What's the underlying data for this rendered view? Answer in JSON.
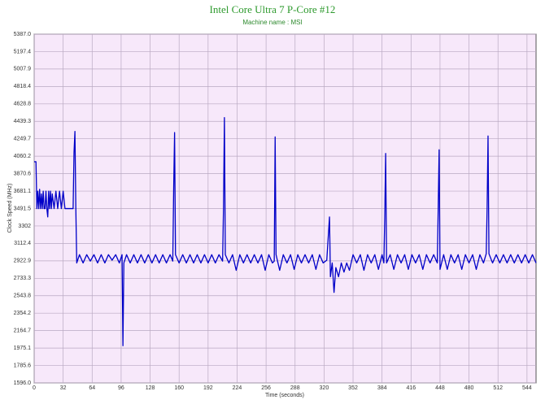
{
  "chart_data": {
    "type": "line",
    "title": "Intel Core Ultra 7 P-Core #12",
    "subtitle": "Machine name : MSI",
    "y_label": "Clock Speed (MHz)",
    "x_label": "Time (seconds)",
    "xlim": [
      0,
      554
    ],
    "ylim": [
      1596,
      5387
    ],
    "xticks": [
      0,
      32,
      64,
      96,
      128,
      160,
      192,
      224,
      256,
      288,
      320,
      352,
      384,
      416,
      448,
      480,
      512,
      544
    ],
    "yticks": [
      {
        "value": 1596,
        "label": "1596.0"
      },
      1785.6,
      1975.1,
      2164.7,
      2354.2,
      2543.8,
      2733.3,
      2922.9,
      3112.4,
      3302,
      3491.5,
      3681.1,
      3870.6,
      4060.2,
      4249.7,
      4439.3,
      4628.8,
      4818.4,
      5007.9,
      5197.4,
      {
        "value": 5387,
        "label": "5387.0"
      }
    ],
    "grid": true,
    "x": [
      0,
      2,
      3,
      4,
      5,
      6,
      7,
      8,
      9,
      10,
      11,
      12,
      13,
      14,
      15,
      16,
      17,
      18,
      19,
      20,
      22,
      24,
      26,
      28,
      30,
      32,
      34,
      36,
      38,
      40,
      42,
      43,
      44,
      45,
      46,
      47,
      50,
      54,
      58,
      62,
      66,
      70,
      74,
      78,
      82,
      86,
      90,
      94,
      97,
      98,
      99,
      102,
      106,
      110,
      114,
      118,
      122,
      126,
      130,
      134,
      138,
      142,
      146,
      150,
      153,
      154,
      155,
      156,
      160,
      164,
      168,
      172,
      176,
      180,
      184,
      188,
      192,
      196,
      200,
      204,
      208,
      209,
      210,
      211,
      215,
      219,
      223,
      227,
      231,
      235,
      239,
      243,
      247,
      251,
      255,
      259,
      263,
      265,
      266,
      267,
      271,
      275,
      279,
      283,
      287,
      291,
      295,
      299,
      303,
      307,
      311,
      315,
      319,
      323,
      326,
      327,
      329,
      331,
      333,
      336,
      339,
      342,
      345,
      348,
      352,
      356,
      360,
      364,
      368,
      372,
      376,
      380,
      384,
      386,
      387,
      388,
      389,
      393,
      397,
      401,
      405,
      409,
      413,
      417,
      421,
      425,
      429,
      433,
      437,
      441,
      445,
      446,
      447,
      448,
      452,
      456,
      460,
      464,
      468,
      472,
      476,
      480,
      484,
      488,
      492,
      496,
      499,
      500,
      501,
      502,
      506,
      510,
      514,
      518,
      522,
      526,
      530,
      534,
      538,
      542,
      546,
      550,
      554
    ],
    "series": [
      {
        "name": "P-Core #12",
        "color": "#0000c8",
        "values": [
          4000,
          4000,
          3491,
          3680,
          3491,
          3700,
          3491,
          3650,
          3491,
          3680,
          3491,
          3491,
          3680,
          3491,
          3400,
          3680,
          3491,
          3680,
          3491,
          3650,
          3491,
          3680,
          3491,
          3680,
          3491,
          3680,
          3491,
          3491,
          3491,
          3491,
          3491,
          3491,
          4100,
          4330,
          3491,
          2900,
          2990,
          2900,
          2990,
          2920,
          2990,
          2900,
          2990,
          2900,
          2990,
          2930,
          2990,
          2900,
          2990,
          2000,
          2900,
          2990,
          2900,
          2990,
          2900,
          2990,
          2900,
          2990,
          2900,
          2990,
          2900,
          2990,
          2900,
          2990,
          2920,
          3700,
          4317,
          2990,
          2900,
          2990,
          2900,
          2990,
          2900,
          2990,
          2900,
          2990,
          2900,
          2990,
          2900,
          2990,
          2920,
          3500,
          4480,
          2990,
          2900,
          2990,
          2820,
          2990,
          2900,
          2990,
          2900,
          2990,
          2900,
          2990,
          2820,
          2990,
          2900,
          2920,
          4270,
          2990,
          2820,
          2990,
          2900,
          2990,
          2830,
          2990,
          2900,
          2990,
          2900,
          2990,
          2830,
          2990,
          2900,
          2930,
          3400,
          2750,
          2900,
          2580,
          2850,
          2750,
          2900,
          2800,
          2900,
          2820,
          2990,
          2900,
          2990,
          2820,
          2990,
          2900,
          2990,
          2830,
          2990,
          2900,
          3400,
          4090,
          2900,
          2990,
          2830,
          2990,
          2900,
          2990,
          2830,
          2990,
          2900,
          2990,
          2830,
          2990,
          2900,
          2990,
          2900,
          3500,
          4130,
          2830,
          2990,
          2830,
          2990,
          2900,
          2990,
          2830,
          2990,
          2900,
          2990,
          2830,
          2990,
          2900,
          3000,
          3500,
          4280,
          3000,
          2900,
          2990,
          2900,
          2990,
          2900,
          2990,
          2900,
          2990,
          2900,
          2990,
          2900,
          2990,
          2900
        ]
      }
    ]
  }
}
